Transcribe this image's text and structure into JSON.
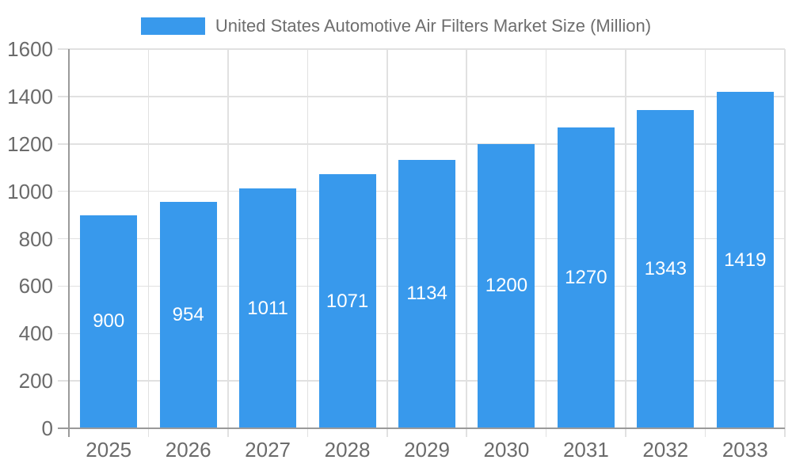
{
  "legend": {
    "label": "United States Automotive Air Filters Market Size (Million)"
  },
  "chart_data": {
    "type": "bar",
    "title": "United States Automotive Air Filters Market Size (Million)",
    "categories": [
      "2025",
      "2026",
      "2027",
      "2028",
      "2029",
      "2030",
      "2031",
      "2032",
      "2033"
    ],
    "values": [
      900,
      954,
      1011,
      1071,
      1134,
      1200,
      1270,
      1343,
      1419
    ],
    "xlabel": "",
    "ylabel": "",
    "ylim": [
      0,
      1600
    ],
    "yticks": [
      0,
      200,
      400,
      600,
      800,
      1000,
      1200,
      1400,
      1600
    ],
    "grid": true,
    "legend_position": "top",
    "bar_color": "#3899ec",
    "value_label_color": "#ffffff"
  },
  "colors": {
    "bar": "#3899ec",
    "gridline": "#e1e1e1",
    "axis_line": "#9a9a9a",
    "axis_text": "#6b6b6b",
    "legend_text": "#6e6e6e",
    "background": "#ffffff"
  }
}
